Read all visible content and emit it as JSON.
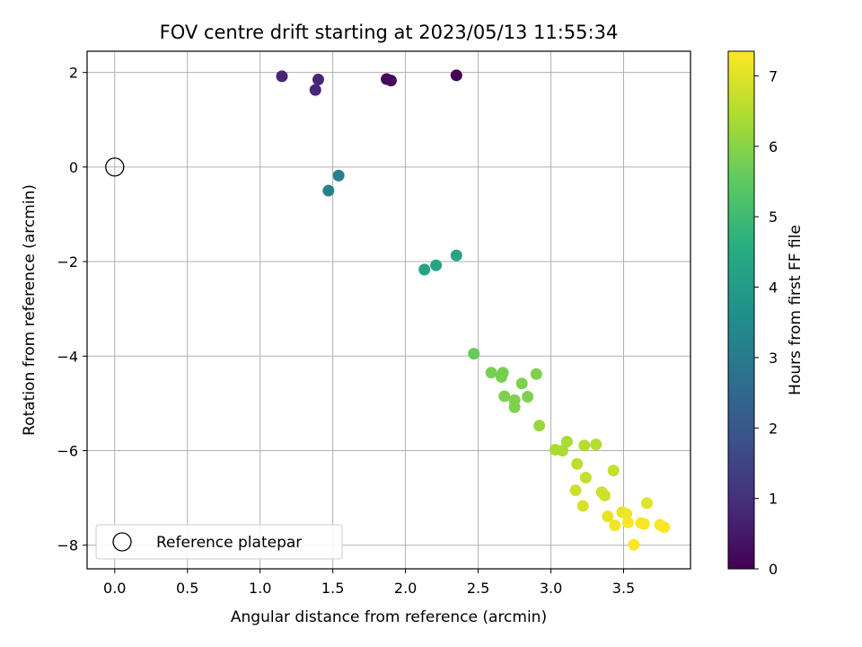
{
  "chart_data": {
    "type": "scatter",
    "title": "FOV centre drift starting at 2023/05/13 11:55:34",
    "xlabel": "Angular distance from reference (arcmin)",
    "ylabel": "Rotation from reference (arcmin)",
    "xlim": [
      -0.19,
      3.96
    ],
    "ylim": [
      -8.5,
      2.45
    ],
    "xticks": [
      0.0,
      0.5,
      1.0,
      1.5,
      2.0,
      2.5,
      3.0,
      3.5
    ],
    "xtick_labels": [
      "0.0",
      "0.5",
      "1.0",
      "1.5",
      "2.0",
      "2.5",
      "3.0",
      "3.5"
    ],
    "yticks": [
      2,
      0,
      -2,
      -4,
      -6,
      -8
    ],
    "ytick_labels": [
      "2",
      "0",
      "−2",
      "−4",
      "−6",
      "−8"
    ],
    "grid": true,
    "colormap": "viridis",
    "colorbar": {
      "label": "Hours from first FF file",
      "range": [
        0,
        7.35
      ],
      "ticks": [
        0,
        1,
        2,
        3,
        4,
        5,
        6,
        7
      ],
      "tick_labels": [
        "0",
        "1",
        "2",
        "3",
        "4",
        "5",
        "6",
        "7"
      ]
    },
    "reference_point": {
      "x": 0,
      "y": 0,
      "marker": "open-circle",
      "edge_color": "#000000"
    },
    "legend": {
      "location": "lower-left",
      "entries": [
        "Reference platepar"
      ]
    },
    "points": [
      {
        "x": 2.35,
        "y": 1.94,
        "hours": 0.0
      },
      {
        "x": 1.87,
        "y": 1.86,
        "hours": 0.1
      },
      {
        "x": 1.9,
        "y": 1.83,
        "hours": 0.2
      },
      {
        "x": 1.15,
        "y": 1.92,
        "hours": 0.8
      },
      {
        "x": 1.4,
        "y": 1.85,
        "hours": 0.8
      },
      {
        "x": 1.38,
        "y": 1.63,
        "hours": 0.8
      },
      {
        "x": 1.54,
        "y": -0.18,
        "hours": 3.2
      },
      {
        "x": 1.47,
        "y": -0.5,
        "hours": 3.2
      },
      {
        "x": 2.35,
        "y": -1.87,
        "hours": 4.3
      },
      {
        "x": 2.21,
        "y": -2.08,
        "hours": 4.3
      },
      {
        "x": 2.13,
        "y": -2.17,
        "hours": 4.3
      },
      {
        "x": 2.47,
        "y": -3.95,
        "hours": 5.6
      },
      {
        "x": 2.59,
        "y": -4.35,
        "hours": 5.8
      },
      {
        "x": 2.67,
        "y": -4.35,
        "hours": 5.8
      },
      {
        "x": 2.66,
        "y": -4.44,
        "hours": 5.8
      },
      {
        "x": 2.9,
        "y": -4.38,
        "hours": 5.9
      },
      {
        "x": 2.8,
        "y": -4.58,
        "hours": 5.9
      },
      {
        "x": 2.68,
        "y": -4.85,
        "hours": 5.9
      },
      {
        "x": 2.75,
        "y": -4.93,
        "hours": 5.9
      },
      {
        "x": 2.84,
        "y": -4.86,
        "hours": 5.9
      },
      {
        "x": 2.75,
        "y": -5.08,
        "hours": 5.9
      },
      {
        "x": 2.92,
        "y": -5.47,
        "hours": 6.2
      },
      {
        "x": 3.03,
        "y": -5.98,
        "hours": 6.4
      },
      {
        "x": 3.08,
        "y": -6.0,
        "hours": 6.4
      },
      {
        "x": 3.11,
        "y": -5.81,
        "hours": 6.4
      },
      {
        "x": 3.23,
        "y": -5.89,
        "hours": 6.5
      },
      {
        "x": 3.31,
        "y": -5.87,
        "hours": 6.5
      },
      {
        "x": 3.18,
        "y": -6.28,
        "hours": 6.6
      },
      {
        "x": 3.24,
        "y": -6.57,
        "hours": 6.7
      },
      {
        "x": 3.43,
        "y": -6.42,
        "hours": 6.7
      },
      {
        "x": 3.17,
        "y": -6.84,
        "hours": 6.8
      },
      {
        "x": 3.35,
        "y": -6.88,
        "hours": 6.8
      },
      {
        "x": 3.37,
        "y": -6.95,
        "hours": 6.8
      },
      {
        "x": 3.22,
        "y": -7.17,
        "hours": 6.9
      },
      {
        "x": 3.66,
        "y": -7.11,
        "hours": 7.0
      },
      {
        "x": 3.39,
        "y": -7.39,
        "hours": 7.1
      },
      {
        "x": 3.49,
        "y": -7.3,
        "hours": 7.1
      },
      {
        "x": 3.52,
        "y": -7.34,
        "hours": 7.2
      },
      {
        "x": 3.44,
        "y": -7.58,
        "hours": 7.2
      },
      {
        "x": 3.53,
        "y": -7.52,
        "hours": 7.3
      },
      {
        "x": 3.62,
        "y": -7.53,
        "hours": 7.3
      },
      {
        "x": 3.64,
        "y": -7.55,
        "hours": 7.3
      },
      {
        "x": 3.75,
        "y": -7.57,
        "hours": 7.3
      },
      {
        "x": 3.78,
        "y": -7.62,
        "hours": 7.35
      },
      {
        "x": 3.57,
        "y": -7.99,
        "hours": 7.35
      }
    ]
  }
}
